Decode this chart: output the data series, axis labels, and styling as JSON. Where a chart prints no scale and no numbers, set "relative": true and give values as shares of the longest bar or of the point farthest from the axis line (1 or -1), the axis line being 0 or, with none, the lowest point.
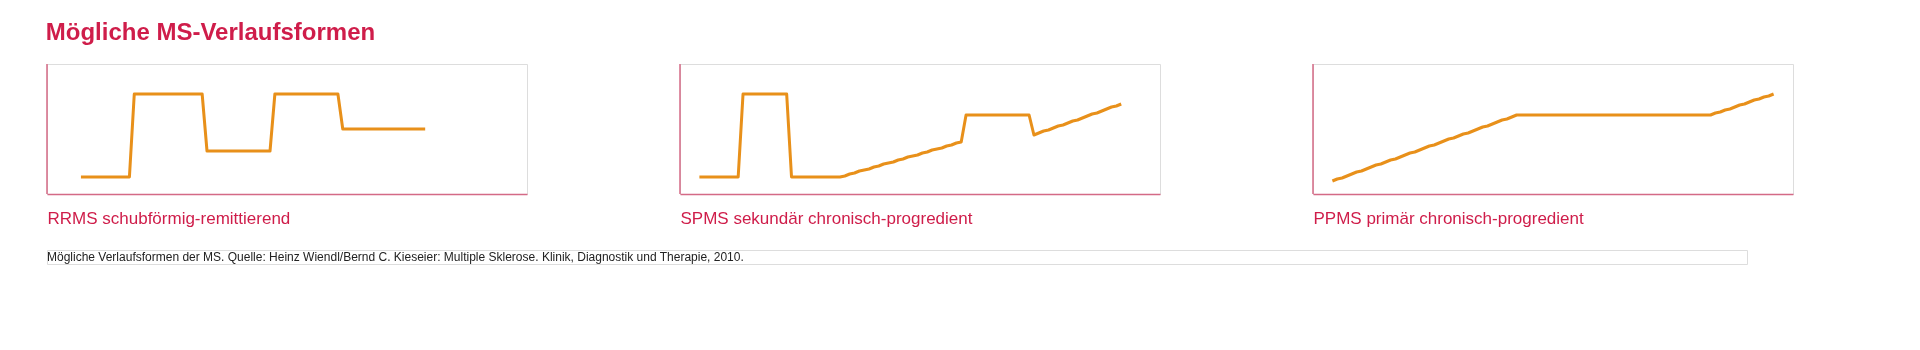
{
  "chart_data": [
    {
      "type": "line",
      "title": "Mögliche MS-Verlaufsformen",
      "xlabel": "RRMS schubförmig-remittierend",
      "relative": true,
      "color": "#e8901a",
      "annotations": [
        "Mögliche Verlaufsformen der MS. Quelle: Heinz Wiendl/Bernd C. Kieseier: Multiple Sklerose. Klinik, Diagnostik und Therapie, 2010."
      ],
      "categories": [
        null,
        null,
        null,
        null,
        null,
        null,
        null,
        null,
        null,
        null,
        null,
        null,
        null,
        null,
        null,
        null,
        null,
        null,
        null,
        null,
        null,
        null,
        null,
        null,
        null,
        null,
        null,
        null,
        null,
        null,
        null,
        null,
        null,
        null,
        null,
        null,
        null,
        null,
        null,
        null,
        null,
        null,
        null,
        null,
        null,
        null,
        null,
        null,
        null,
        null,
        null,
        null,
        null,
        null,
        null,
        null,
        null,
        null,
        null,
        null,
        null,
        null,
        null,
        null,
        null,
        null,
        null,
        null,
        null,
        null,
        null,
        null,
        null,
        null,
        null,
        null,
        null,
        null,
        null,
        null,
        null,
        null,
        null,
        null,
        null,
        null,
        null,
        null,
        null,
        null,
        null,
        null,
        null,
        null,
        null,
        null,
        null,
        null,
        null,
        null
      ],
      "values": [
        null,
        null,
        null,
        null,
        null,
        null,
        null,
        0.17,
        0.17,
        0.17,
        0.17,
        0.17,
        0.17,
        0.17,
        0.17,
        0.17,
        0.17,
        0.17,
        1,
        1,
        1,
        1,
        1,
        1,
        1,
        1,
        1,
        1,
        1,
        1,
        1,
        1,
        1,
        0.43,
        0.43,
        0.43,
        0.43,
        0.43,
        0.43,
        0.43,
        0.43,
        0.43,
        0.43,
        0.43,
        0.43,
        0.43,
        0.43,
        1,
        1,
        1,
        1,
        1,
        1,
        1,
        1,
        1,
        1,
        1,
        1,
        1,
        1,
        0.65,
        0.65,
        0.65,
        0.65,
        0.65,
        0.65,
        0.65,
        0.65,
        0.65,
        0.65,
        0.65,
        0.65,
        0.65,
        0.65,
        0.65,
        0.65,
        0.65,
        0.65,
        null,
        null,
        null,
        null,
        null,
        null,
        null,
        null,
        null,
        null,
        null,
        null,
        null,
        null,
        null,
        null,
        null,
        null,
        null,
        null,
        null
      ]
    },
    {
      "type": "line",
      "xlabel": "SPMS sekundär chronisch-progredient",
      "relative": true,
      "color": "#e8901a",
      "categories": [
        null,
        null,
        null,
        null,
        null,
        null,
        null,
        null,
        null,
        null,
        null,
        null,
        null,
        null,
        null,
        null,
        null,
        null,
        null,
        null,
        null,
        null,
        null,
        null,
        null,
        null,
        null,
        null,
        null,
        null,
        null,
        null,
        null,
        null,
        null,
        null,
        null,
        null,
        null,
        null,
        null,
        null,
        null,
        null,
        null,
        null,
        null,
        null,
        null,
        null,
        null,
        null,
        null,
        null,
        null,
        null,
        null,
        null,
        null,
        null,
        null,
        null,
        null,
        null,
        null,
        null,
        null,
        null,
        null,
        null,
        null,
        null,
        null,
        null,
        null,
        null,
        null,
        null,
        null,
        null,
        null,
        null,
        null,
        null,
        null,
        null,
        null,
        null,
        null,
        null,
        null,
        null,
        null,
        null,
        null,
        null,
        null,
        null,
        null,
        null
      ],
      "values": [
        null,
        null,
        null,
        null,
        0.17,
        0.17,
        0.17,
        0.17,
        0.17,
        0.17,
        0.17,
        0.17,
        0.17,
        1,
        1,
        1,
        1,
        1,
        1,
        1,
        1,
        1,
        1,
        0.17,
        0.17,
        0.17,
        0.17,
        0.17,
        0.17,
        0.17,
        0.17,
        0.17,
        0.17,
        0.17,
        0.18,
        0.2,
        0.21,
        0.23,
        0.24,
        0.25,
        0.27,
        0.28,
        0.3,
        0.31,
        0.32,
        0.34,
        0.35,
        0.37,
        0.38,
        0.39,
        0.41,
        0.42,
        0.44,
        0.45,
        0.46,
        0.48,
        0.49,
        0.51,
        0.52,
        0.79,
        0.79,
        0.79,
        0.79,
        0.79,
        0.79,
        0.79,
        0.79,
        0.79,
        0.79,
        0.79,
        0.79,
        0.79,
        0.79,
        0.59,
        0.61,
        0.63,
        0.64,
        0.66,
        0.68,
        0.69,
        0.71,
        0.73,
        0.74,
        0.76,
        0.78,
        0.8,
        0.81,
        0.83,
        0.85,
        0.87,
        0.88,
        0.9,
        null,
        null,
        null,
        null,
        null,
        null,
        null,
        null
      ]
    },
    {
      "type": "line",
      "xlabel": "PPMS primär chronisch-progredient",
      "relative": true,
      "color": "#e8901a",
      "categories": [
        null,
        null,
        null,
        null,
        null,
        null,
        null,
        null,
        null,
        null,
        null,
        null,
        null,
        null,
        null,
        null,
        null,
        null,
        null,
        null,
        null,
        null,
        null,
        null,
        null,
        null,
        null,
        null,
        null,
        null,
        null,
        null,
        null,
        null,
        null,
        null,
        null,
        null,
        null,
        null,
        null,
        null,
        null,
        null,
        null,
        null,
        null,
        null,
        null,
        null,
        null,
        null,
        null,
        null,
        null,
        null,
        null,
        null,
        null,
        null,
        null,
        null,
        null,
        null,
        null,
        null,
        null,
        null,
        null,
        null,
        null,
        null,
        null,
        null,
        null,
        null,
        null,
        null,
        null,
        null,
        null,
        null,
        null,
        null,
        null,
        null,
        null,
        null,
        null,
        null,
        null,
        null,
        null,
        null,
        null,
        null,
        null,
        null,
        null,
        null
      ],
      "values": [
        null,
        null,
        null,
        null,
        0.13,
        0.15,
        0.16,
        0.18,
        0.2,
        0.22,
        0.23,
        0.25,
        0.27,
        0.29,
        0.3,
        0.32,
        0.34,
        0.35,
        0.37,
        0.39,
        0.41,
        0.42,
        0.44,
        0.46,
        0.48,
        0.49,
        0.51,
        0.53,
        0.55,
        0.56,
        0.58,
        0.6,
        0.61,
        0.63,
        0.65,
        0.67,
        0.68,
        0.7,
        0.72,
        0.74,
        0.75,
        0.77,
        0.79,
        0.79,
        0.79,
        0.79,
        0.79,
        0.79,
        0.79,
        0.79,
        0.79,
        0.79,
        0.79,
        0.79,
        0.79,
        0.79,
        0.79,
        0.79,
        0.79,
        0.79,
        0.79,
        0.79,
        0.79,
        0.79,
        0.79,
        0.79,
        0.79,
        0.79,
        0.79,
        0.79,
        0.79,
        0.79,
        0.79,
        0.79,
        0.79,
        0.79,
        0.79,
        0.79,
        0.79,
        0.79,
        0.79,
        0.79,
        0.79,
        0.81,
        0.82,
        0.84,
        0.85,
        0.87,
        0.89,
        0.9,
        0.92,
        0.94,
        0.95,
        0.97,
        0.98,
        1,
        null,
        null,
        null,
        null
      ]
    }
  ]
}
